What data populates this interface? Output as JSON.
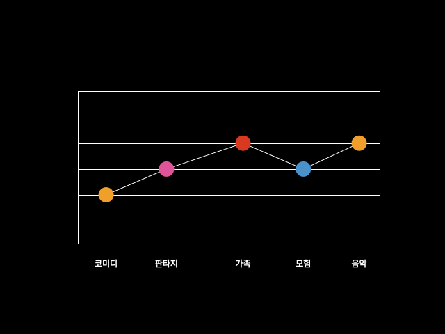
{
  "chart_data": {
    "type": "line",
    "categories": [
      "코미디",
      "판타지",
      "가족",
      "모험",
      "음악"
    ],
    "x_positions": [
      1,
      2.3,
      3.95,
      5.25,
      6.45
    ],
    "values": [
      2,
      3,
      4,
      3,
      4
    ],
    "point_colors": [
      "#f0a02a",
      "#e0559a",
      "#d9391e",
      "#4a92cc",
      "#f0a02a"
    ],
    "line_color": "#ffffff",
    "background": "#000000",
    "frame_color": "#ffffff",
    "grid": true,
    "grid_color": "#ffffff",
    "xlim": [
      0.4,
      6.9
    ],
    "ylim": [
      0.1,
      6
    ],
    "gridlines_y": [
      1,
      2,
      3,
      4,
      5
    ]
  }
}
